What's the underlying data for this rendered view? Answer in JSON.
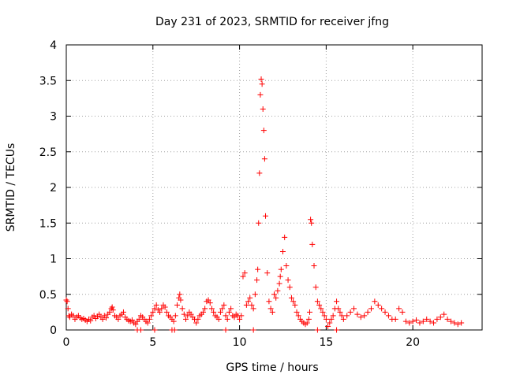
{
  "chart_data": {
    "type": "scatter",
    "title": "Day 231 of 2023, SRMTID for receiver jfng",
    "xlabel": "GPS time / hours",
    "ylabel": "SRMTID / TECUs",
    "xlim": [
      0,
      24
    ],
    "ylim": [
      0,
      4
    ],
    "x_ticks": [
      0,
      5,
      10,
      15,
      20
    ],
    "x_tick_labels": [
      "0",
      "5",
      "10",
      "15",
      "20"
    ],
    "y_ticks": [
      0,
      0.5,
      1,
      1.5,
      2,
      2.5,
      3,
      3.5,
      4
    ],
    "y_tick_labels": [
      "0",
      "0.5",
      "1",
      "1.5",
      "2",
      "2.5",
      "3",
      "3.5",
      "4"
    ],
    "grid": true,
    "marker": "+",
    "color": "#ff0000",
    "series": [
      {
        "name": "jfng",
        "x": [
          0.0,
          0.05,
          0.1,
          0.15,
          0.2,
          0.3,
          0.4,
          0.5,
          0.6,
          0.7,
          0.8,
          0.9,
          1.0,
          1.1,
          1.2,
          1.3,
          1.4,
          1.5,
          1.6,
          1.7,
          1.8,
          1.9,
          2.0,
          2.1,
          2.2,
          2.3,
          2.4,
          2.5,
          2.6,
          2.65,
          2.7,
          2.8,
          2.9,
          3.0,
          3.1,
          3.2,
          3.3,
          3.4,
          3.5,
          3.6,
          3.7,
          3.8,
          3.9,
          4.0,
          4.1,
          4.2,
          4.3,
          4.4,
          4.5,
          4.6,
          4.7,
          4.8,
          4.9,
          5.0,
          5.1,
          5.2,
          5.3,
          5.4,
          5.5,
          5.6,
          5.7,
          5.8,
          5.9,
          6.0,
          6.1,
          6.2,
          6.3,
          6.4,
          6.5,
          6.55,
          6.6,
          6.7,
          6.8,
          6.9,
          7.0,
          7.1,
          7.2,
          7.3,
          7.4,
          7.5,
          7.6,
          7.7,
          7.8,
          7.9,
          8.0,
          8.1,
          8.2,
          8.3,
          8.4,
          8.5,
          8.6,
          8.7,
          8.8,
          8.9,
          9.0,
          9.1,
          9.2,
          9.3,
          9.4,
          9.5,
          9.6,
          9.7,
          9.8,
          9.9,
          10.0,
          10.1,
          10.2,
          10.3,
          10.4,
          10.5,
          10.6,
          10.7,
          10.8,
          10.9,
          11.0,
          11.05,
          11.1,
          11.15,
          11.2,
          11.25,
          11.3,
          11.35,
          11.4,
          11.45,
          11.5,
          11.6,
          11.7,
          11.8,
          11.9,
          12.0,
          12.1,
          12.2,
          12.3,
          12.35,
          12.4,
          12.5,
          12.6,
          12.7,
          12.8,
          12.9,
          13.0,
          13.1,
          13.2,
          13.3,
          13.4,
          13.5,
          13.6,
          13.7,
          13.8,
          13.9,
          14.0,
          14.05,
          14.1,
          14.15,
          14.2,
          14.3,
          14.4,
          14.5,
          14.6,
          14.7,
          14.8,
          14.9,
          15.0,
          15.1,
          15.2,
          15.3,
          15.4,
          15.5,
          15.6,
          15.7,
          15.8,
          15.9,
          16.0,
          16.2,
          16.4,
          16.6,
          16.8,
          17.0,
          17.2,
          17.4,
          17.6,
          17.8,
          18.0,
          18.2,
          18.4,
          18.6,
          18.8,
          19.0,
          19.2,
          19.4,
          19.6,
          19.8,
          20.0,
          20.2,
          20.4,
          20.6,
          20.8,
          21.0,
          21.2,
          21.4,
          21.6,
          21.8,
          22.0,
          22.2,
          22.4,
          22.6,
          22.8,
          4.1,
          4.3,
          5.1,
          6.1,
          6.25,
          9.2,
          10.8,
          14.5,
          15.6
        ],
        "y": [
          0.42,
          0.4,
          0.3,
          0.2,
          0.18,
          0.22,
          0.2,
          0.15,
          0.18,
          0.2,
          0.17,
          0.15,
          0.16,
          0.14,
          0.12,
          0.15,
          0.13,
          0.18,
          0.2,
          0.16,
          0.19,
          0.22,
          0.18,
          0.15,
          0.2,
          0.17,
          0.22,
          0.25,
          0.3,
          0.32,
          0.28,
          0.2,
          0.18,
          0.15,
          0.2,
          0.22,
          0.25,
          0.18,
          0.15,
          0.13,
          0.12,
          0.14,
          0.1,
          0.08,
          0.12,
          0.15,
          0.2,
          0.18,
          0.15,
          0.12,
          0.1,
          0.15,
          0.2,
          0.25,
          0.3,
          0.35,
          0.28,
          0.25,
          0.3,
          0.35,
          0.32,
          0.25,
          0.2,
          0.18,
          0.15,
          0.12,
          0.2,
          0.35,
          0.45,
          0.5,
          0.42,
          0.3,
          0.22,
          0.15,
          0.2,
          0.25,
          0.22,
          0.18,
          0.15,
          0.1,
          0.15,
          0.2,
          0.22,
          0.25,
          0.3,
          0.4,
          0.42,
          0.38,
          0.3,
          0.25,
          0.2,
          0.18,
          0.15,
          0.25,
          0.3,
          0.35,
          0.2,
          0.15,
          0.25,
          0.3,
          0.2,
          0.18,
          0.22,
          0.2,
          0.15,
          0.2,
          0.75,
          0.8,
          0.35,
          0.4,
          0.45,
          0.35,
          0.3,
          0.5,
          0.7,
          0.85,
          1.5,
          2.2,
          3.3,
          3.52,
          3.45,
          3.1,
          2.8,
          2.4,
          1.6,
          0.8,
          0.4,
          0.3,
          0.25,
          0.5,
          0.45,
          0.55,
          0.65,
          0.75,
          0.85,
          1.1,
          1.3,
          0.9,
          0.7,
          0.6,
          0.45,
          0.4,
          0.35,
          0.25,
          0.2,
          0.15,
          0.12,
          0.1,
          0.08,
          0.1,
          0.15,
          0.25,
          1.55,
          1.5,
          1.2,
          0.9,
          0.6,
          0.4,
          0.35,
          0.3,
          0.25,
          0.2,
          0.15,
          0.05,
          0.1,
          0.15,
          0.2,
          0.3,
          0.4,
          0.3,
          0.25,
          0.2,
          0.15,
          0.2,
          0.25,
          0.3,
          0.22,
          0.18,
          0.2,
          0.25,
          0.3,
          0.4,
          0.35,
          0.3,
          0.25,
          0.2,
          0.15,
          0.15,
          0.3,
          0.25,
          0.12,
          0.1,
          0.12,
          0.14,
          0.1,
          0.12,
          0.15,
          0.12,
          0.1,
          0.15,
          0.18,
          0.22,
          0.15,
          0.12,
          0.1,
          0.08,
          0.1,
          0.0,
          0.0,
          0.0,
          0.0,
          0.0,
          0.0,
          0.0,
          0.0,
          0.0
        ]
      }
    ]
  }
}
